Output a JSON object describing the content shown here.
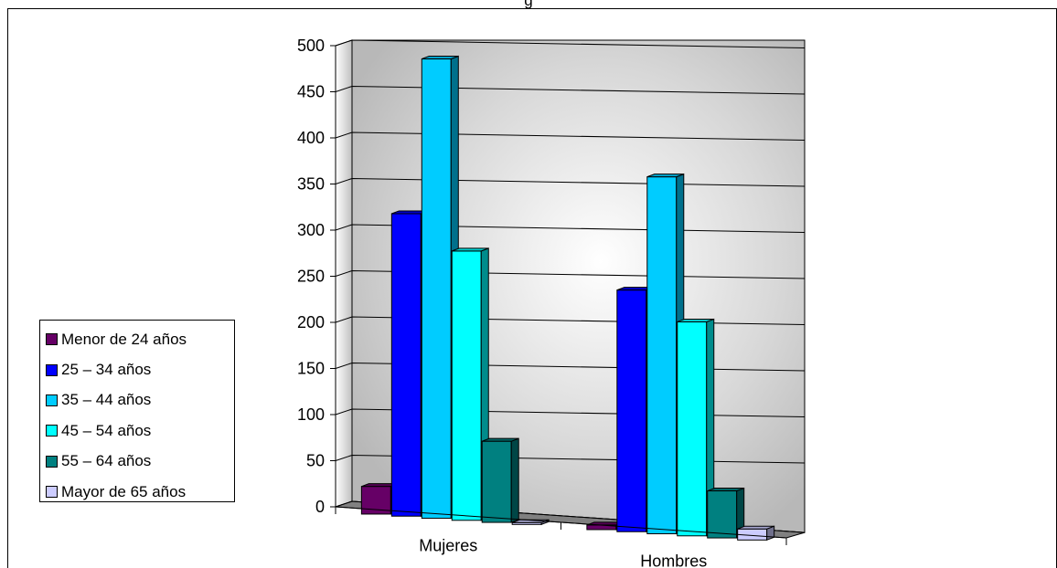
{
  "chart_data": {
    "type": "bar",
    "title": "g",
    "categories": [
      "Mujeres",
      "Hombres"
    ],
    "ylim": [
      0,
      500
    ],
    "yticks": [
      "0",
      "50",
      "100",
      "150",
      "200",
      "250",
      "300",
      "350",
      "400",
      "450",
      "500"
    ],
    "grid": true,
    "legend_position": "left",
    "series": [
      {
        "name": "Menor de 24 años",
        "values": [
          30,
          5
        ],
        "color": "#660066"
      },
      {
        "name": "25 – 34 años",
        "values": [
          328,
          262
        ],
        "color": "#0000FF"
      },
      {
        "name": "35 – 44 años",
        "values": [
          498,
          387
        ],
        "color": "#00CCFF"
      },
      {
        "name": "45 – 54 años",
        "values": [
          292,
          232
        ],
        "color": "#00FFFF"
      },
      {
        "name": "55 – 64 años",
        "values": [
          88,
          51
        ],
        "color": "#008080"
      },
      {
        "name": "Mayor de 65 años",
        "values": [
          2,
          12
        ],
        "color": "#CCCCFF"
      }
    ]
  }
}
